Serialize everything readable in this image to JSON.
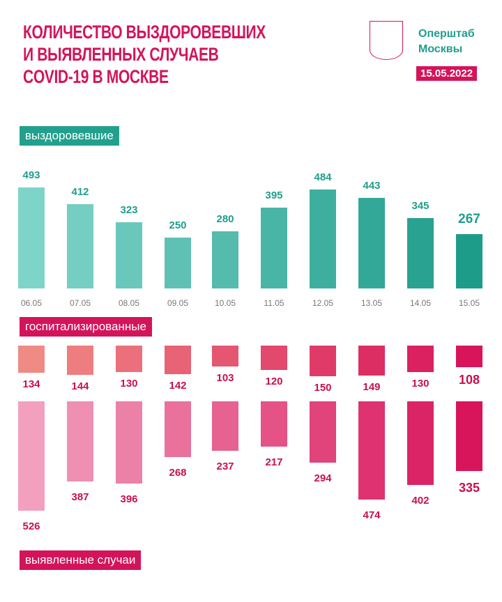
{
  "header": {
    "title_lines": [
      "КОЛИЧЕСТВО ВЫЗДОРОВЕВШИХ",
      "И ВЫЯВЛЕННЫХ СЛУЧАЕВ",
      "COVID-19 В МОСКВЕ"
    ],
    "brand_lines": [
      "Оперштаб",
      "Москвы"
    ],
    "date": "15.05.2022"
  },
  "colors": {
    "title": "#d4145a",
    "teal": "#1f9e8c"
  },
  "chart_data": [
    {
      "type": "bar",
      "title": "выздоровевшие",
      "categories": [
        "06.05",
        "07.05",
        "08.05",
        "09.05",
        "10.05",
        "11.05",
        "12.05",
        "13.05",
        "14.05",
        "15.05"
      ],
      "values": [
        493,
        412,
        323,
        250,
        280,
        395,
        484,
        443,
        345,
        267
      ]
    },
    {
      "type": "bar",
      "title": "госпитализированные",
      "categories": [
        "06.05",
        "07.05",
        "08.05",
        "09.05",
        "10.05",
        "11.05",
        "12.05",
        "13.05",
        "14.05",
        "15.05"
      ],
      "values": [
        134,
        144,
        130,
        142,
        103,
        120,
        150,
        149,
        130,
        108
      ]
    },
    {
      "type": "bar",
      "title": "выявленные случаи",
      "categories": [
        "06.05",
        "07.05",
        "08.05",
        "09.05",
        "10.05",
        "11.05",
        "12.05",
        "13.05",
        "14.05",
        "15.05"
      ],
      "values": [
        526,
        387,
        396,
        268,
        237,
        217,
        294,
        474,
        402,
        335
      ]
    }
  ]
}
